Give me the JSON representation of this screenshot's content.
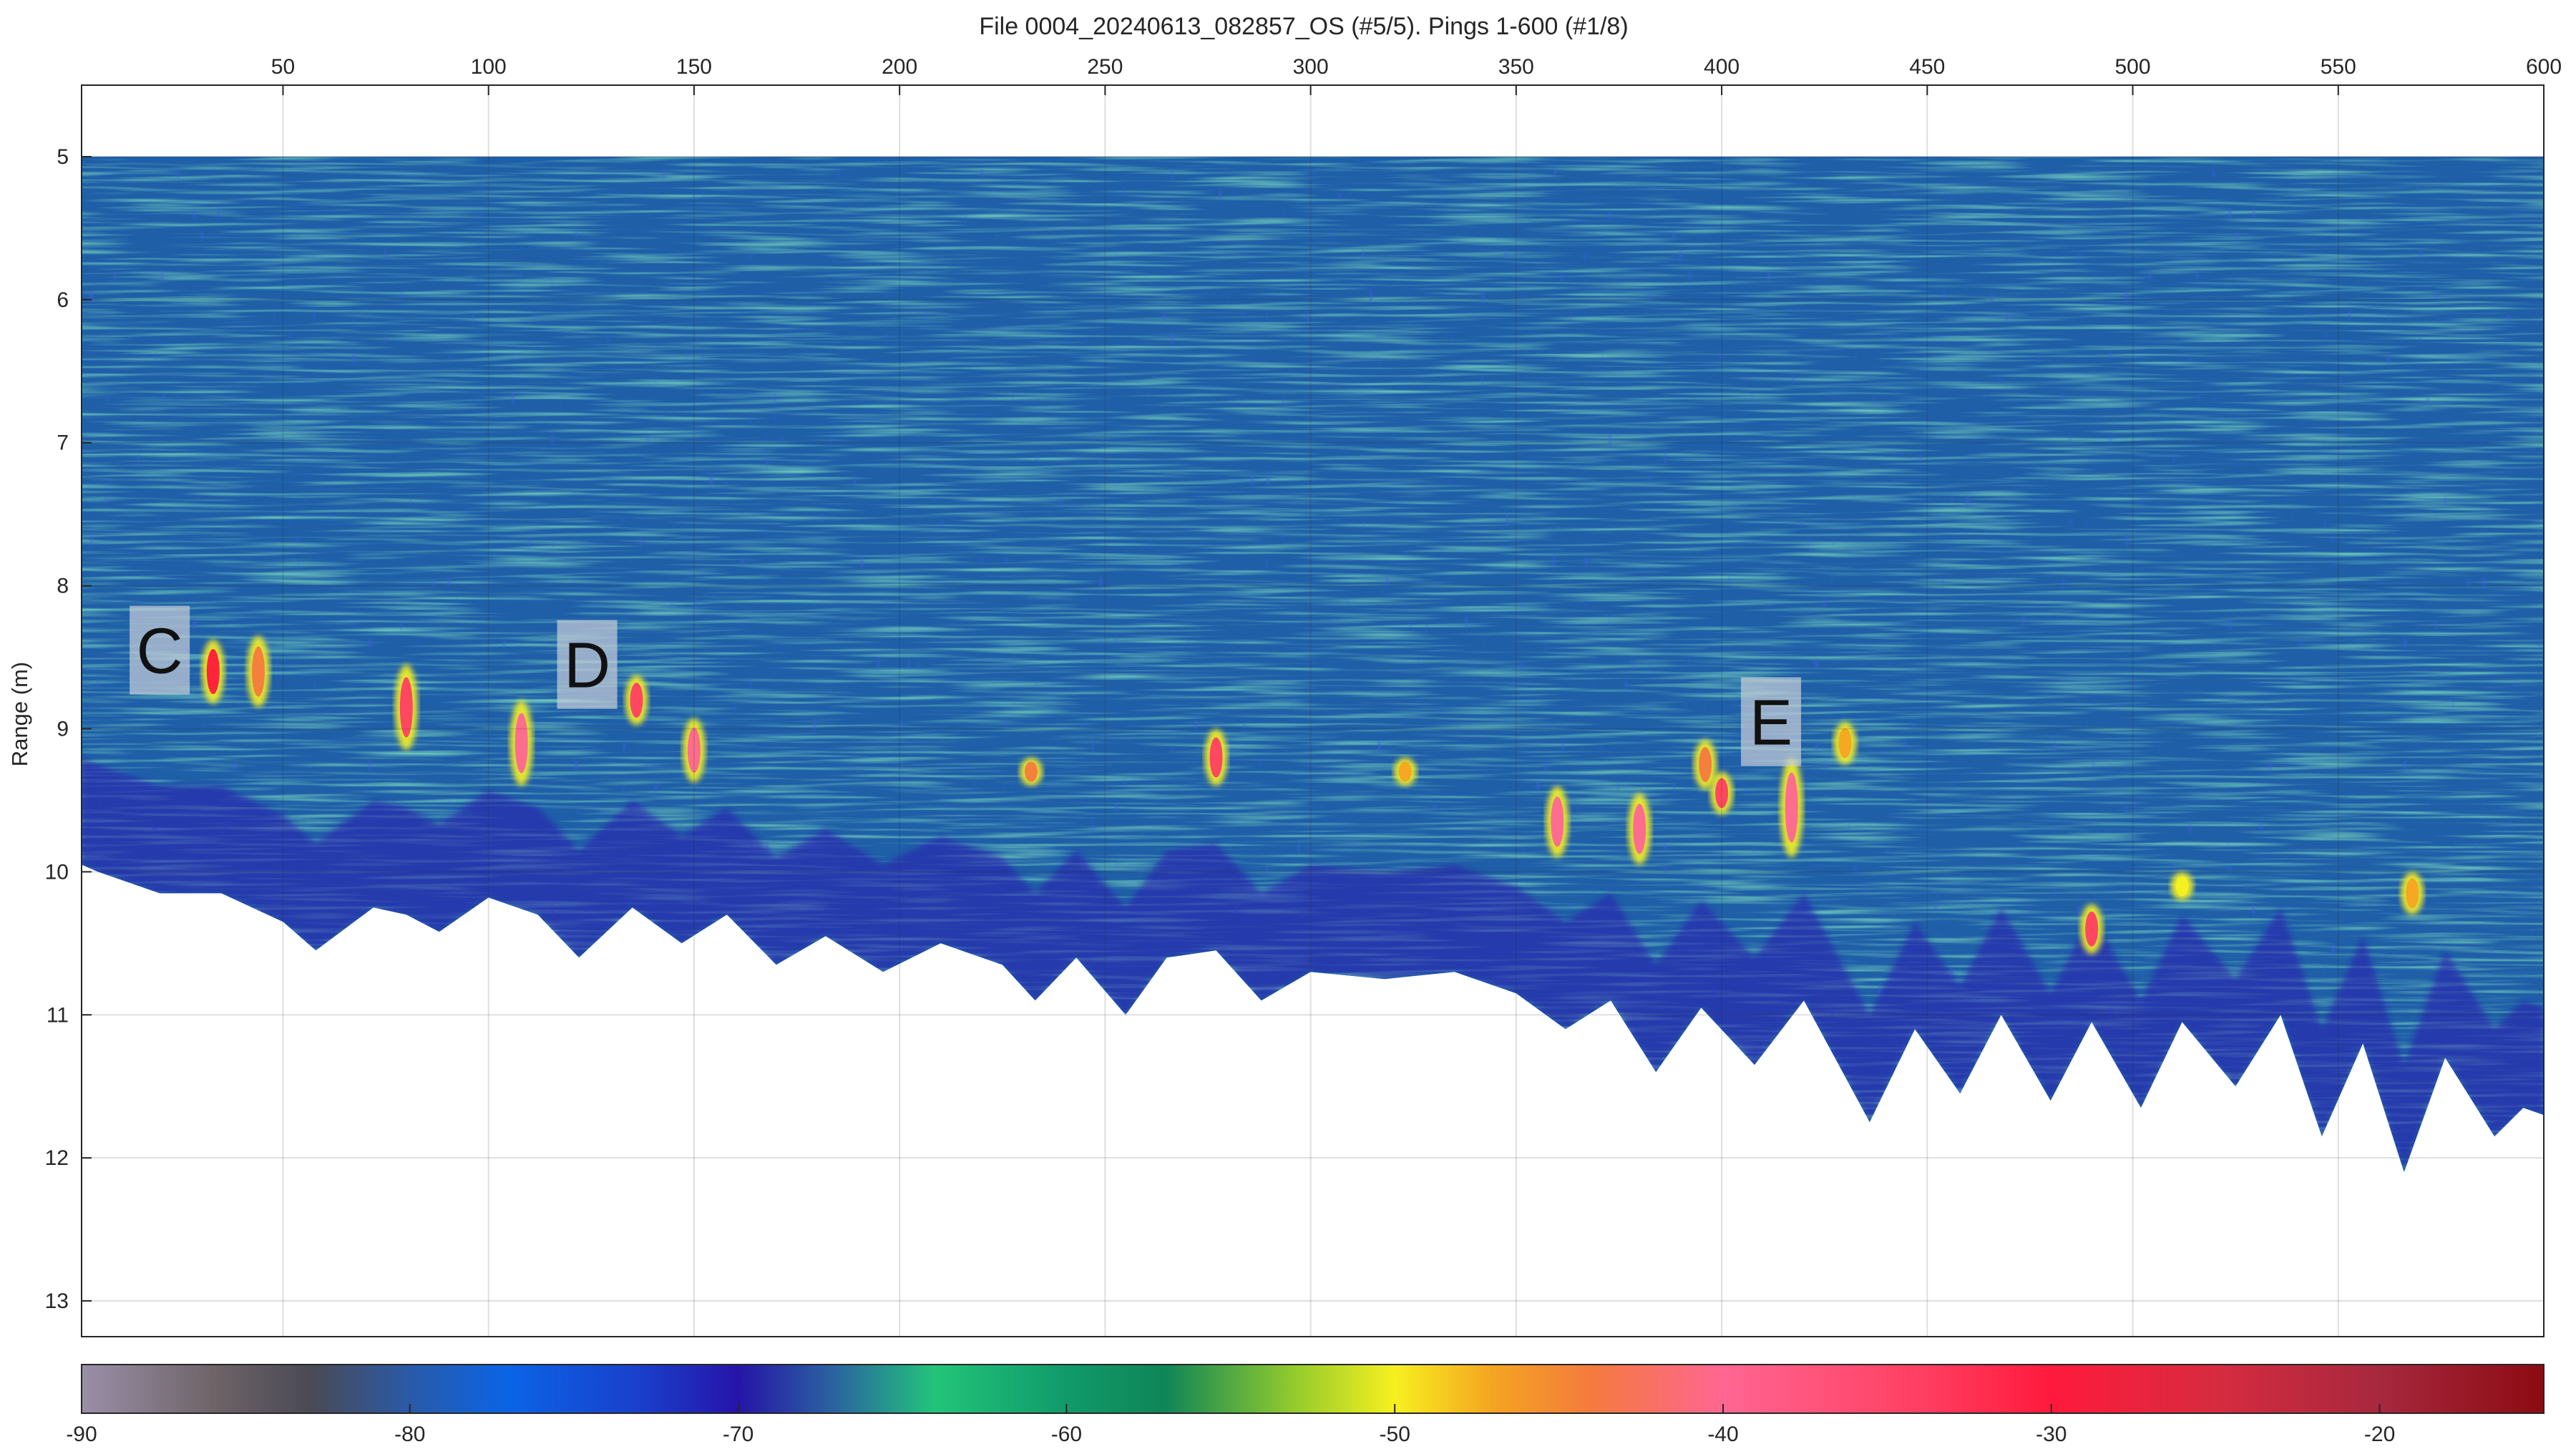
{
  "chart_data": {
    "type": "heatmap",
    "title": "File 0004_20240613_082857_OS (#5/5). Pings 1-600 (#1/8)",
    "xlabel": "",
    "ylabel": "Range (m)",
    "xlim": [
      1,
      600
    ],
    "ylim": [
      4.5,
      13.25
    ],
    "y_reversed": true,
    "x_axis_position": "top",
    "x_ticks": [
      50,
      100,
      150,
      200,
      250,
      300,
      350,
      400,
      450,
      500,
      550,
      600
    ],
    "y_ticks": [
      5,
      6,
      7,
      8,
      9,
      10,
      11,
      12,
      13
    ],
    "grid": true,
    "data_start_range": 5.0,
    "colorbar": {
      "position": "bottom",
      "range": [
        -90,
        -15
      ],
      "ticks": [
        -90,
        -80,
        -70,
        -60,
        -50,
        -40,
        -30,
        -20
      ],
      "stops": [
        {
          "v": -90,
          "color": "#9a8fa8"
        },
        {
          "v": -86,
          "color": "#6e6468"
        },
        {
          "v": -83,
          "color": "#4a4a55"
        },
        {
          "v": -80,
          "color": "#2a5aa8"
        },
        {
          "v": -77,
          "color": "#0b64e6"
        },
        {
          "v": -73,
          "color": "#1a3fcc"
        },
        {
          "v": -70,
          "color": "#2614a8"
        },
        {
          "v": -67,
          "color": "#2a66a0"
        },
        {
          "v": -64,
          "color": "#22c47a"
        },
        {
          "v": -60,
          "color": "#109a6a"
        },
        {
          "v": -57,
          "color": "#0f8558"
        },
        {
          "v": -53,
          "color": "#96cc2c"
        },
        {
          "v": -50,
          "color": "#f6f020"
        },
        {
          "v": -47,
          "color": "#f5a421"
        },
        {
          "v": -44,
          "color": "#f47a3e"
        },
        {
          "v": -40,
          "color": "#ff6692"
        },
        {
          "v": -34,
          "color": "#ff3f62"
        },
        {
          "v": -30,
          "color": "#ff1a3c"
        },
        {
          "v": -25,
          "color": "#d72b3f"
        },
        {
          "v": -20,
          "color": "#a7283e"
        },
        {
          "v": -15,
          "color": "#8c0b12"
        }
      ]
    },
    "bottom_profile": [
      {
        "ping": 1,
        "range": 9.95
      },
      {
        "ping": 5,
        "range": 10.0
      },
      {
        "ping": 20,
        "range": 10.15
      },
      {
        "ping": 35,
        "range": 10.15
      },
      {
        "ping": 50,
        "range": 10.35
      },
      {
        "ping": 58,
        "range": 10.55
      },
      {
        "ping": 72,
        "range": 10.25
      },
      {
        "ping": 80,
        "range": 10.3
      },
      {
        "ping": 88,
        "range": 10.42
      },
      {
        "ping": 100,
        "range": 10.18
      },
      {
        "ping": 112,
        "range": 10.3
      },
      {
        "ping": 122,
        "range": 10.6
      },
      {
        "ping": 135,
        "range": 10.25
      },
      {
        "ping": 147,
        "range": 10.5
      },
      {
        "ping": 158,
        "range": 10.3
      },
      {
        "ping": 170,
        "range": 10.65
      },
      {
        "ping": 182,
        "range": 10.45
      },
      {
        "ping": 196,
        "range": 10.7
      },
      {
        "ping": 210,
        "range": 10.5
      },
      {
        "ping": 225,
        "range": 10.65
      },
      {
        "ping": 233,
        "range": 10.9
      },
      {
        "ping": 243,
        "range": 10.6
      },
      {
        "ping": 255,
        "range": 11.0
      },
      {
        "ping": 265,
        "range": 10.6
      },
      {
        "ping": 277,
        "range": 10.55
      },
      {
        "ping": 288,
        "range": 10.9
      },
      {
        "ping": 300,
        "range": 10.7
      },
      {
        "ping": 318,
        "range": 10.75
      },
      {
        "ping": 335,
        "range": 10.7
      },
      {
        "ping": 350,
        "range": 10.85
      },
      {
        "ping": 362,
        "range": 11.1
      },
      {
        "ping": 373,
        "range": 10.9
      },
      {
        "ping": 384,
        "range": 11.4
      },
      {
        "ping": 395,
        "range": 10.95
      },
      {
        "ping": 408,
        "range": 11.35
      },
      {
        "ping": 420,
        "range": 10.9
      },
      {
        "ping": 436,
        "range": 11.75
      },
      {
        "ping": 447,
        "range": 11.1
      },
      {
        "ping": 458,
        "range": 11.55
      },
      {
        "ping": 468,
        "range": 11.0
      },
      {
        "ping": 480,
        "range": 11.6
      },
      {
        "ping": 490,
        "range": 11.05
      },
      {
        "ping": 502,
        "range": 11.65
      },
      {
        "ping": 512,
        "range": 11.05
      },
      {
        "ping": 525,
        "range": 11.5
      },
      {
        "ping": 536,
        "range": 11.0
      },
      {
        "ping": 546,
        "range": 11.85
      },
      {
        "ping": 556,
        "range": 11.2
      },
      {
        "ping": 566,
        "range": 12.1
      },
      {
        "ping": 576,
        "range": 11.3
      },
      {
        "ping": 588,
        "range": 11.85
      },
      {
        "ping": 595,
        "range": 11.65
      },
      {
        "ping": 600,
        "range": 11.7
      }
    ],
    "targets": [
      {
        "ping": 33,
        "range": 8.6,
        "length": 0.45,
        "level": -33
      },
      {
        "ping": 44,
        "range": 8.6,
        "length": 0.5,
        "level": -45
      },
      {
        "ping": 80,
        "range": 8.85,
        "length": 0.6,
        "level": -38
      },
      {
        "ping": 108,
        "range": 9.1,
        "length": 0.6,
        "level": -42
      },
      {
        "ping": 136,
        "range": 8.8,
        "length": 0.35,
        "level": -38
      },
      {
        "ping": 150,
        "range": 9.15,
        "length": 0.45,
        "level": -42
      },
      {
        "ping": 232,
        "range": 9.3,
        "length": 0.2,
        "level": -45
      },
      {
        "ping": 277,
        "range": 9.2,
        "length": 0.4,
        "level": -36
      },
      {
        "ping": 323,
        "range": 9.3,
        "length": 0.2,
        "level": -48
      },
      {
        "ping": 360,
        "range": 9.65,
        "length": 0.5,
        "level": -42
      },
      {
        "ping": 380,
        "range": 9.7,
        "length": 0.5,
        "level": -42
      },
      {
        "ping": 396,
        "range": 9.25,
        "length": 0.35,
        "level": -45
      },
      {
        "ping": 400,
        "range": 9.45,
        "length": 0.3,
        "level": -38
      },
      {
        "ping": 417,
        "range": 9.55,
        "length": 0.7,
        "level": -42
      },
      {
        "ping": 430,
        "range": 9.1,
        "length": 0.3,
        "level": -48
      },
      {
        "ping": 490,
        "range": 10.4,
        "length": 0.35,
        "level": -38
      },
      {
        "ping": 512,
        "range": 10.1,
        "length": 0.2,
        "level": -50
      },
      {
        "ping": 568,
        "range": 10.15,
        "length": 0.3,
        "level": -48
      }
    ],
    "annotations": [
      {
        "text": "C",
        "ping": 20,
        "range": 8.45
      },
      {
        "text": "D",
        "ping": 124,
        "range": 8.55
      },
      {
        "text": "E",
        "ping": 412,
        "range": 8.95
      }
    ]
  }
}
